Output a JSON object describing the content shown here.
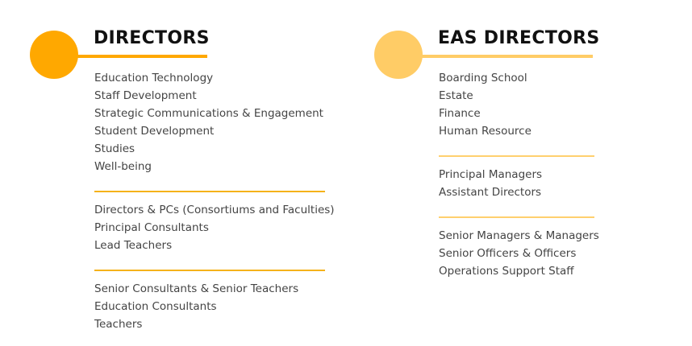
{
  "directors": {
    "title": "DIRECTORS",
    "accent": "#ffa800",
    "groups": [
      [
        "Education Technology",
        "Staff Development",
        "Strategic Communications & Engagement",
        "Student Development",
        "Studies",
        "Well-being"
      ],
      [
        "Directors & PCs (Consortiums and Faculties)",
        "Principal Consultants",
        "Lead Teachers"
      ],
      [
        "Senior Consultants & Senior Teachers",
        "Education Consultants",
        "Teachers"
      ]
    ]
  },
  "eas_directors": {
    "title": "EAS DIRECTORS",
    "accent": "#ffcc66",
    "groups": [
      [
        "Boarding School",
        "Estate",
        "Finance",
        "Human Resource"
      ],
      [
        "Principal Managers",
        "Assistant Directors"
      ],
      [
        "Senior Managers & Managers",
        "Senior Officers & Officers",
        "Operations Support Staff"
      ]
    ]
  }
}
